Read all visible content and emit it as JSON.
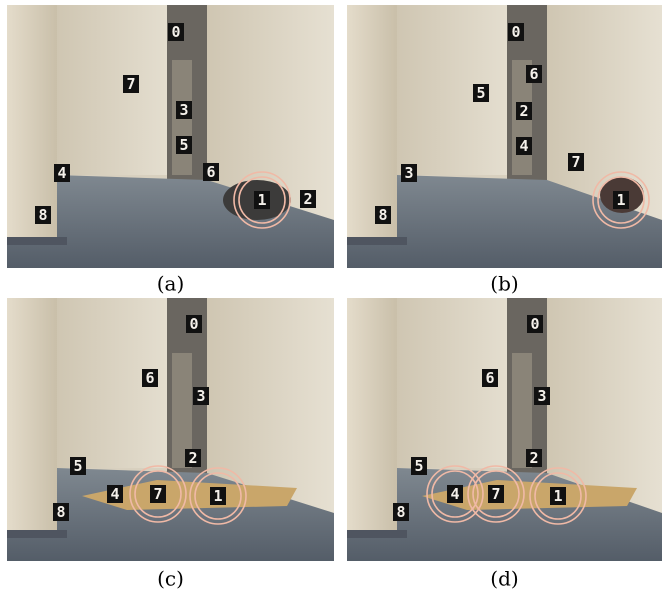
{
  "panels": [
    {
      "caption": "(a)",
      "labels": [
        "0",
        "7",
        "3",
        "5",
        "4",
        "6",
        "1",
        "2",
        "8"
      ]
    },
    {
      "caption": "(b)",
      "labels": [
        "0",
        "6",
        "5",
        "2",
        "4",
        "7",
        "3",
        "1",
        "8"
      ]
    },
    {
      "caption": "(c)",
      "labels": [
        "0",
        "6",
        "3",
        "2",
        "5",
        "4",
        "7",
        "1",
        "8"
      ]
    },
    {
      "caption": "(d)",
      "labels": [
        "0",
        "6",
        "3",
        "2",
        "5",
        "4",
        "7",
        "1",
        "8"
      ]
    }
  ]
}
